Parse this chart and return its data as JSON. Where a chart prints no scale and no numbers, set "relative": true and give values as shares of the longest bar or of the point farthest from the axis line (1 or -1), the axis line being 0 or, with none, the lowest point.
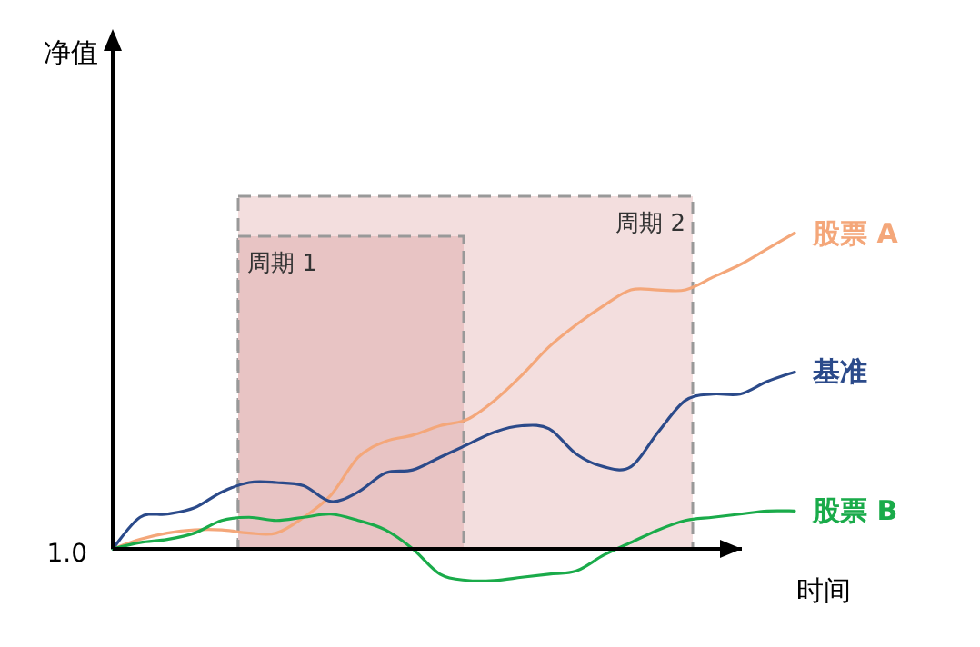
{
  "chart_data": {
    "type": "line",
    "relative": true,
    "xlabel": "时间",
    "annotations": [
      "1.0",
      "周期 2",
      "周期 1",
      "净值"
    ],
    "categories": [
      null,
      null,
      null,
      null,
      null,
      null,
      null,
      null,
      null,
      null,
      null,
      null,
      null,
      null,
      null,
      null,
      null,
      null,
      null,
      null,
      null,
      null,
      null,
      null,
      null,
      null
    ],
    "series": [
      {
        "name": "股票 A",
        "color": "#f4a77a",
        "values": [
          0,
          0.03,
          0.05,
          0.06,
          0.06,
          0.05,
          0.05,
          0.1,
          0.17,
          0.29,
          0.34,
          0.36,
          0.39,
          0.41,
          0.47,
          0.55,
          0.64,
          0.71,
          0.77,
          0.82,
          0.82,
          0.82,
          0.86,
          0.9,
          0.95,
          1
        ]
      },
      {
        "name": "基准",
        "color": "#2b4a8a",
        "values": [
          0,
          0.1,
          0.11,
          0.13,
          0.18,
          0.21,
          0.21,
          0.2,
          0.15,
          0.18,
          0.24,
          0.25,
          0.29,
          0.33,
          0.37,
          0.39,
          0.38,
          0.3,
          0.26,
          0.26,
          0.37,
          0.47,
          0.49,
          0.49,
          0.53,
          0.56
        ]
      },
      {
        "name": "股票 B",
        "color": "#1aab4a",
        "values": [
          0,
          0.02,
          0.03,
          0.05,
          0.09,
          0.1,
          0.09,
          0.1,
          0.11,
          0.09,
          0.06,
          0,
          -0.08,
          -0.1,
          -0.1,
          -0.09,
          -0.08,
          -0.07,
          -0.02,
          0.02,
          0.06,
          0.09,
          0.1,
          0.11,
          0.12,
          0.12
        ]
      }
    ]
  }
}
